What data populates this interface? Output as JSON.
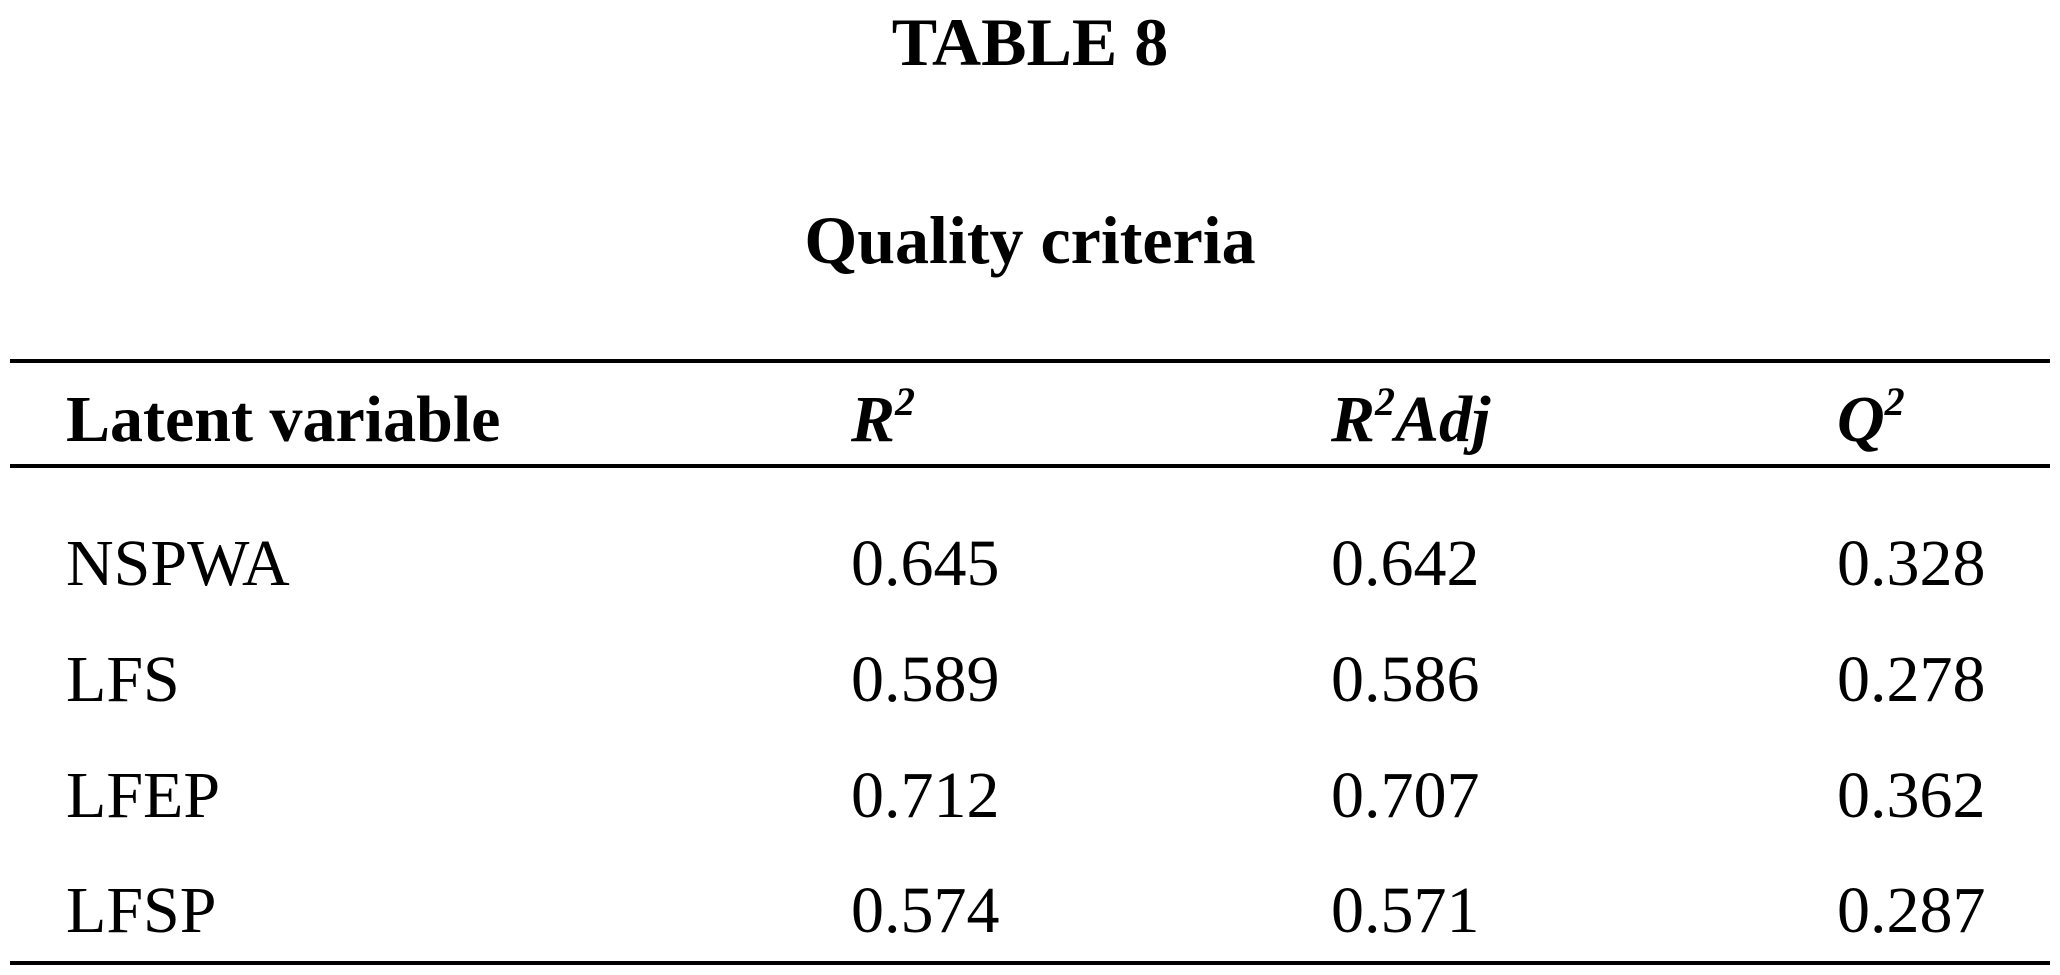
{
  "header": {
    "title": "TABLE 8",
    "subtitle": "Quality criteria"
  },
  "table": {
    "columns": [
      {
        "base": "Latent variable"
      },
      {
        "base": "R",
        "sup": "2"
      },
      {
        "base": "R",
        "sup": "2",
        "after": "Adj"
      },
      {
        "base": "Q",
        "sup": "2"
      }
    ],
    "rows": [
      [
        "NSPWA",
        0.645,
        0.642,
        0.328
      ],
      [
        "LFS",
        0.589,
        0.586,
        0.278
      ],
      [
        "LFEP",
        0.712,
        0.707,
        0.362
      ],
      [
        "LFSP",
        0.574,
        0.571,
        0.287
      ]
    ]
  }
}
